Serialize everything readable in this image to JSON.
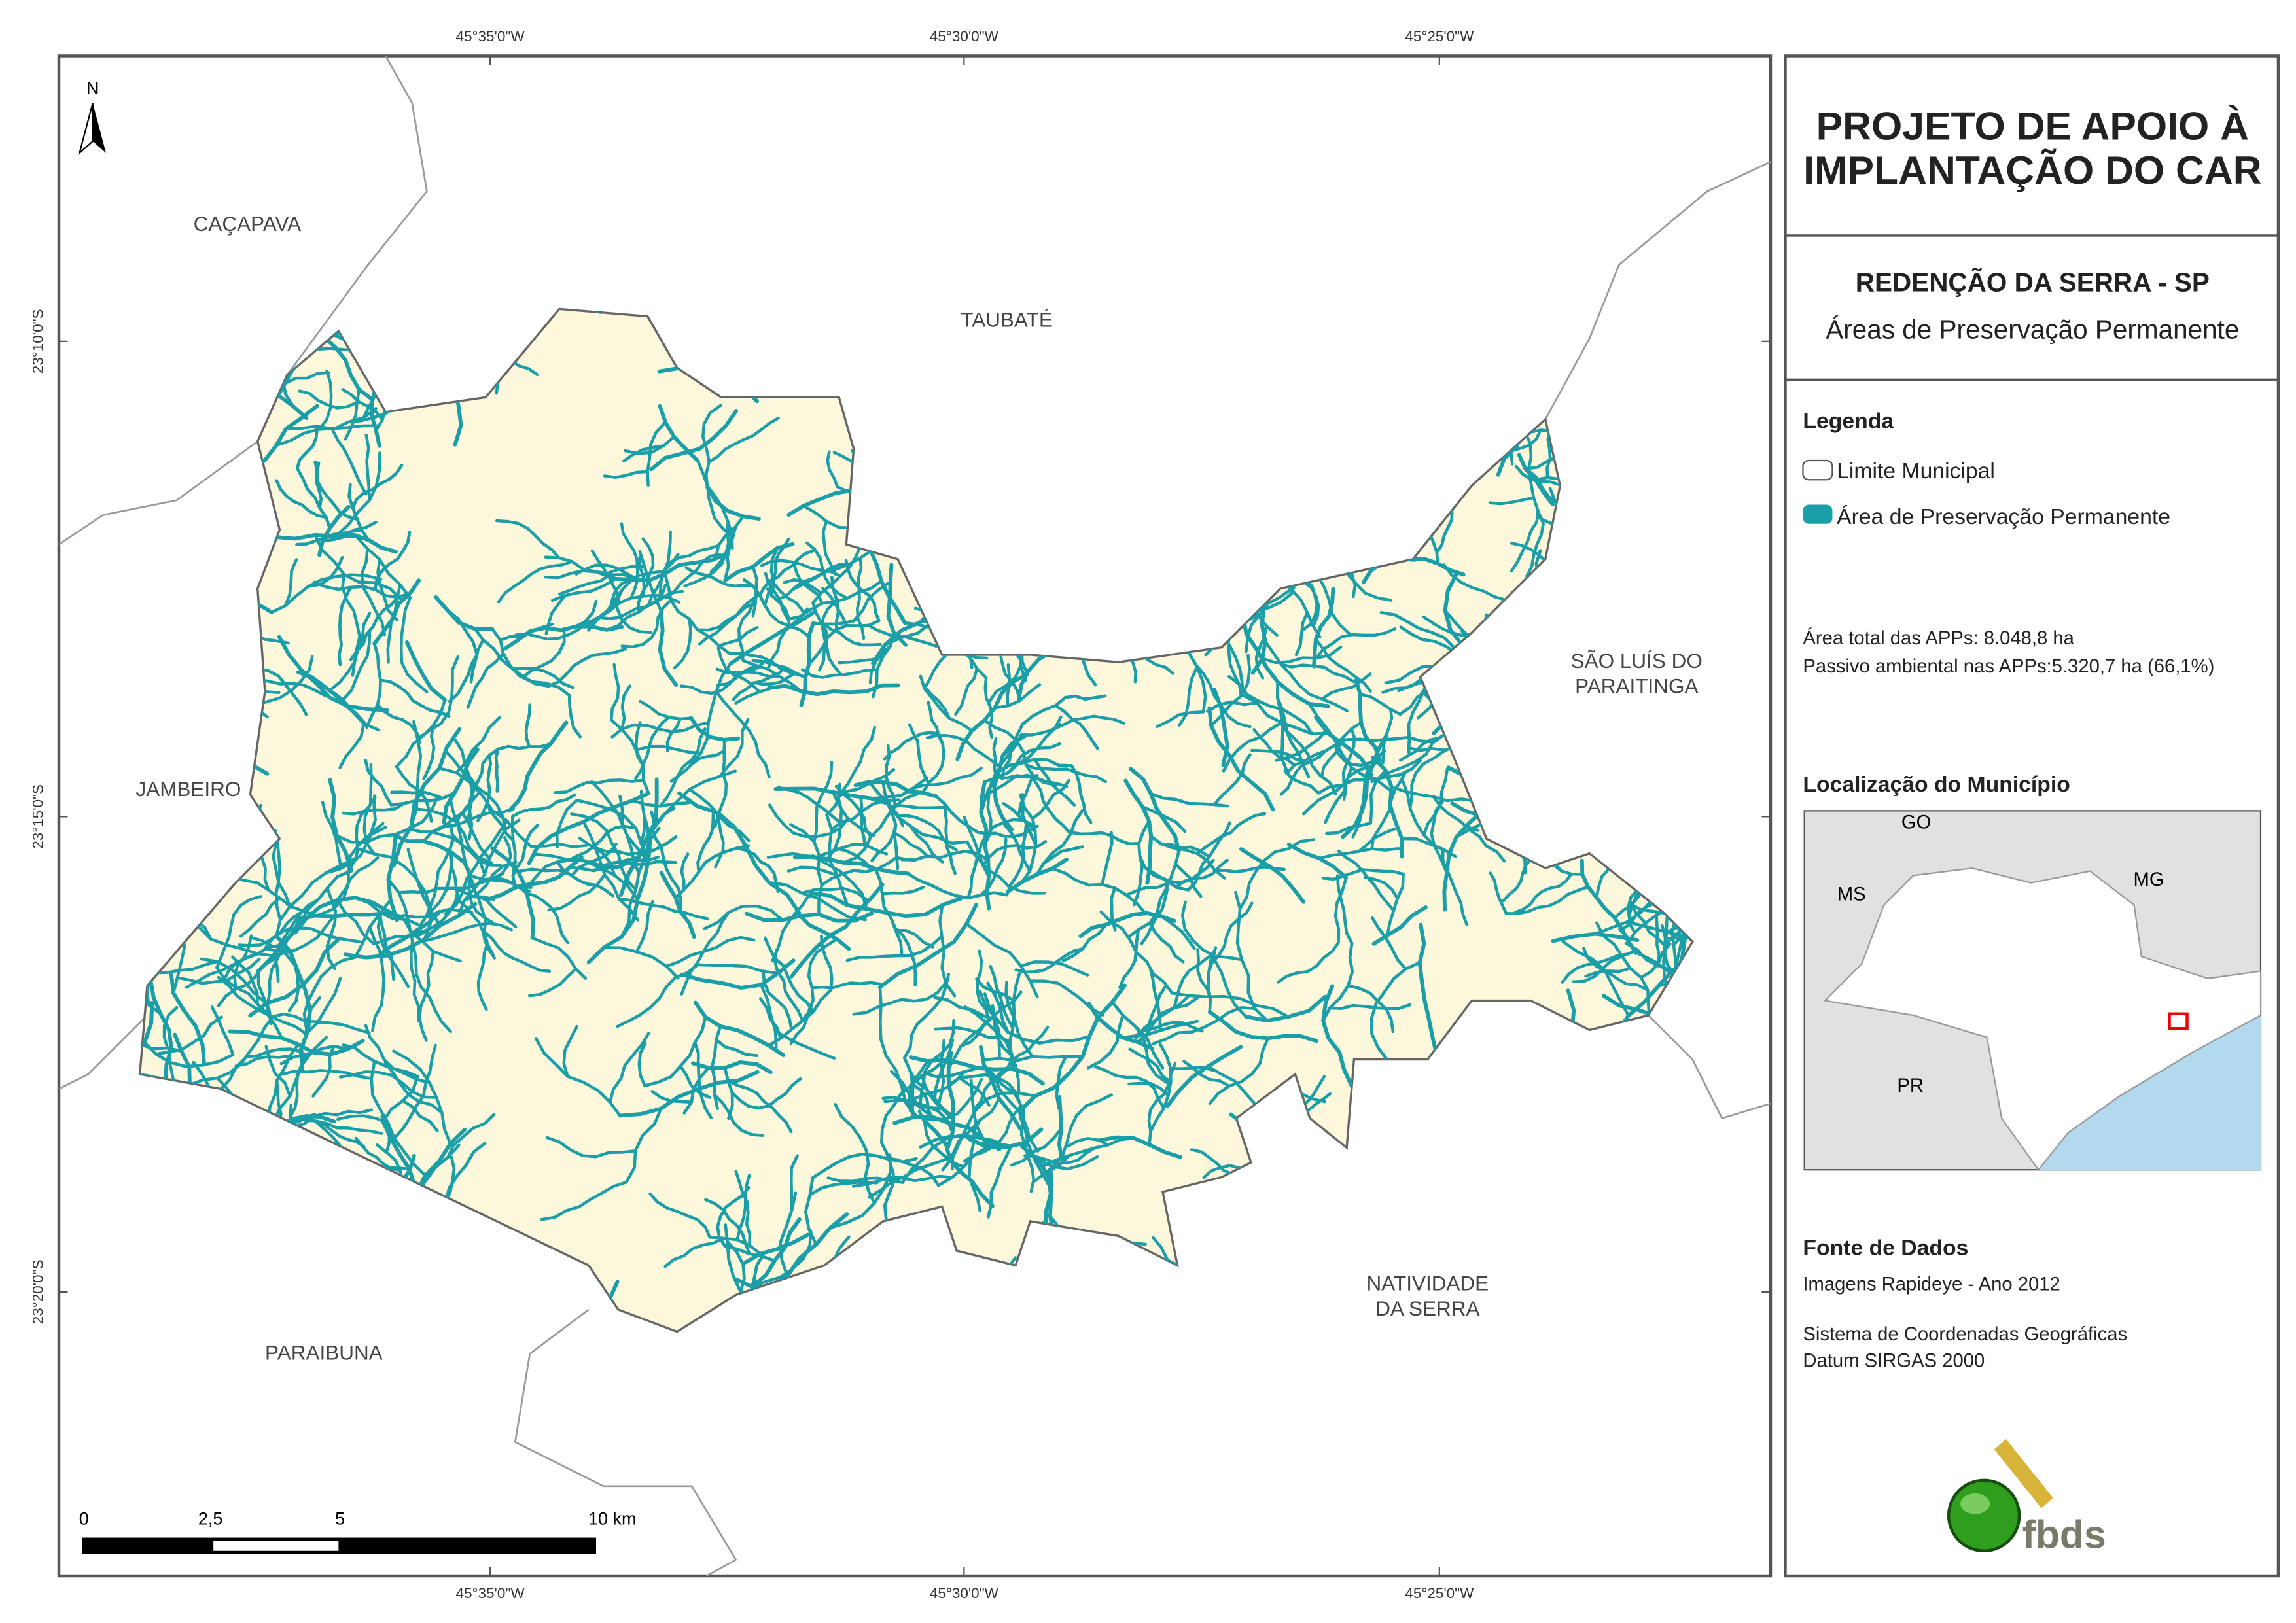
{
  "map": {
    "north": "N",
    "coords_top": [
      "45°35'0\"W",
      "45°30'0\"W",
      "45°25'0\"W"
    ],
    "coords_bottom": [
      "45°35'0\"W",
      "45°30'0\"W",
      "45°25'0\"W"
    ],
    "coords_left": [
      "23°10'0\"S",
      "23°15'0\"S",
      "23°20'0\"S"
    ],
    "places": {
      "cacapava": [
        "CAÇAPAVA"
      ],
      "taubate": [
        "TAUBATÉ"
      ],
      "sao_luis": [
        "SÃO LUÍS DO",
        "PARAITINGA"
      ],
      "jambeiro": [
        "JAMBEIRO"
      ],
      "natividade": [
        "NATIVIDADE",
        "DA SERRA"
      ],
      "paraibuna": [
        "PARAIBUNA"
      ]
    },
    "scale": [
      "0",
      "2,5",
      "5",
      "10 km"
    ]
  },
  "panel": {
    "title": [
      "PROJETO DE APOIO À",
      "IMPLANTAÇÃO DO CAR"
    ],
    "subtitle": "REDENÇÃO DA SERRA - SP",
    "theme": "Áreas de Preservação Permanente",
    "legend_title": "Legenda",
    "legend": [
      "Limite Municipal",
      "Área de Preservação Permanente"
    ],
    "stats": [
      "Área total das APPs: 8.048,8 ha",
      "Passivo ambiental nas APPs:5.320,7 ha (66,1%)"
    ],
    "location_title": "Localização do Município",
    "inset_labels": [
      "GO",
      "MS",
      "MG",
      "PR"
    ],
    "source_title": "Fonte de Dados",
    "sources": [
      "Imagens Rapideye - Ano 2012",
      "Sistema de Coordenadas Geográficas",
      "Datum SIRGAS 2000"
    ],
    "logo": "fbds"
  }
}
